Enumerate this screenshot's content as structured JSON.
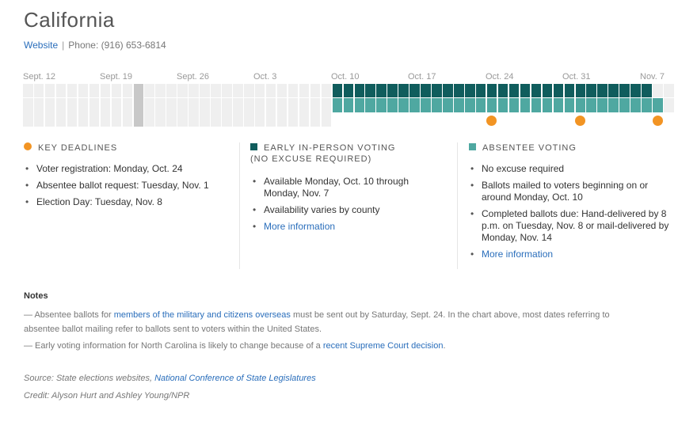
{
  "header": {
    "title": "California",
    "website_label": "Website",
    "separator": "|",
    "phone": "Phone: (916) 653-6814"
  },
  "timeline": {
    "date_labels": [
      "Sept. 12",
      "Sept. 19",
      "Sept. 26",
      "Oct. 3",
      "Oct. 10",
      "Oct. 17",
      "Oct. 24",
      "Oct. 31",
      "Nov. 7"
    ],
    "total_days": 59,
    "first_day": "Sept. 12",
    "today": "Sept. 22",
    "early_voting_days": [
      "Oct. 10",
      "Nov. 7"
    ],
    "absentee_days": [
      "Oct. 10",
      "Nov. 8"
    ],
    "deadline_days": [
      "Oct. 24",
      "Nov. 1",
      "Nov. 8"
    ],
    "colors": {
      "empty": "#efefef",
      "today": "#c8c8c8",
      "early": "#105d5d",
      "absentee": "#4fa8a1",
      "deadline": "#f29423"
    }
  },
  "columns": {
    "deadlines": {
      "heading": "KEY DEADLINES",
      "icon": "orange-circle",
      "items": [
        "Voter registration: Monday, Oct. 24",
        "Absentee ballot request: Tuesday, Nov. 1",
        "Election Day: Tuesday, Nov. 8"
      ]
    },
    "early": {
      "heading_line1": "EARLY IN-PERSON VOTING",
      "heading_line2": "(NO EXCUSE REQUIRED)",
      "icon": "dark-teal-square",
      "items": [
        "Available Monday, Oct. 10 through Monday, Nov. 7",
        "Availability varies by county"
      ],
      "link": "More information"
    },
    "absentee": {
      "heading": "ABSENTEE VOTING",
      "icon": "teal-square",
      "items": [
        "No excuse required",
        "Ballots mailed to voters beginning on or around Monday, Oct. 10",
        "Completed ballots due: Hand-delivered by 8 p.m. on Tuesday, Nov. 8 or mail-delivered by Monday, Nov. 14"
      ],
      "link": "More information"
    }
  },
  "notes": {
    "title": "Notes",
    "note1_prefix": "— Absentee ballots for ",
    "note1_link": "members of the military and citizens overseas",
    "note1_suffix_line1": " must be sent out by Saturday, Sept. 24. In the chart above, most dates referring to",
    "note1_line2": "absentee ballot mailing refer to ballots sent to voters within the United States.",
    "note2_prefix": "— Early voting information for North Carolina is likely to change because of a ",
    "note2_link": "recent Supreme Court decision",
    "note2_suffix": "."
  },
  "source": {
    "source_prefix": "Source: State elections websites, ",
    "source_link": "National Conference of State Legislatures",
    "credit": "Credit: Alyson Hurt and Ashley Young/NPR"
  }
}
